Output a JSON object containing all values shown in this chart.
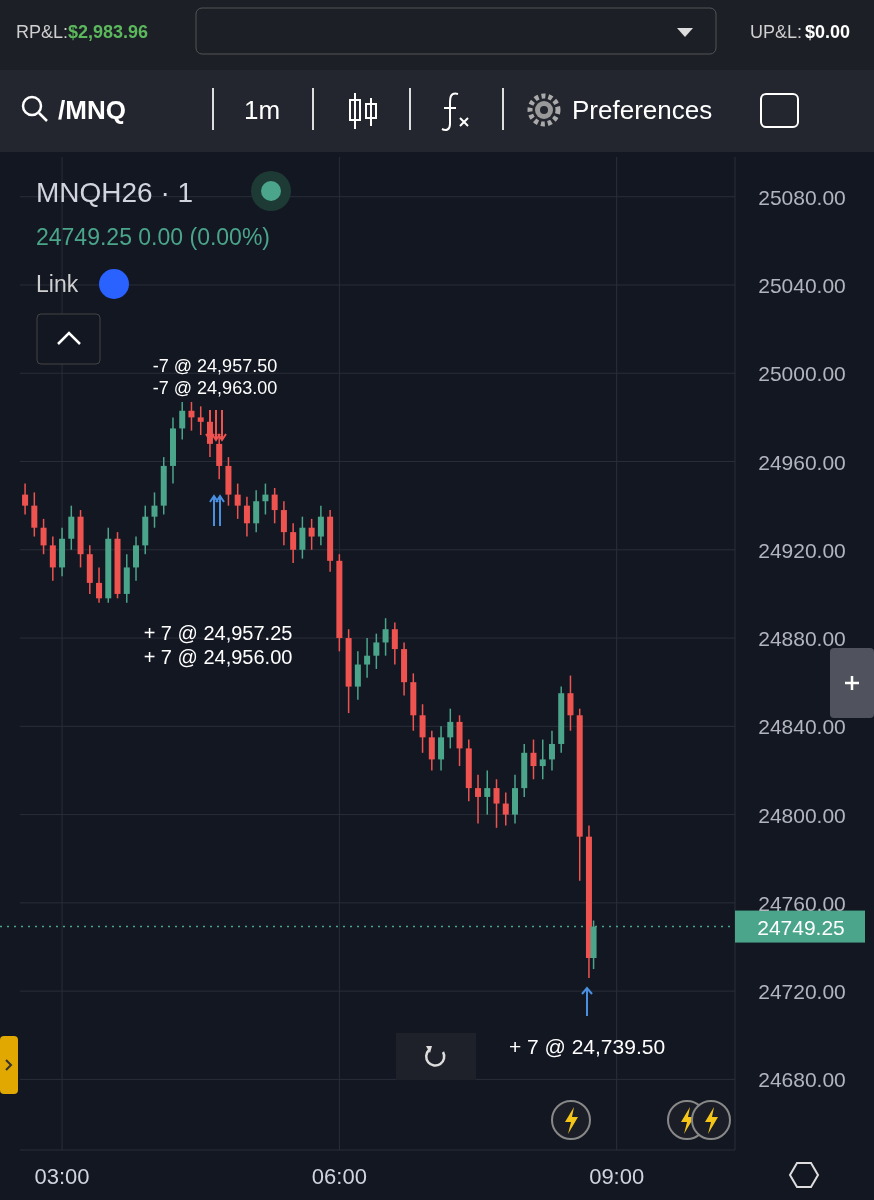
{
  "chart_data": {
    "type": "candlestick",
    "title": "MNQH26 · 1",
    "subtitle": "24749.25 0.00 (0.00%)",
    "x": [
      2.6,
      2.7,
      2.8,
      2.9,
      3.0,
      3.1,
      3.2,
      3.3,
      3.4,
      3.5,
      3.6,
      3.7,
      3.8,
      3.9,
      4.0,
      4.1,
      4.2,
      4.3,
      4.4,
      4.5,
      4.6,
      4.7,
      4.8,
      4.9,
      5.0,
      5.1,
      5.2,
      5.3,
      5.4,
      5.5,
      5.6,
      5.7,
      5.8,
      5.9,
      6.0,
      6.1,
      6.2,
      6.3,
      6.4,
      6.5,
      6.6,
      6.7,
      6.8,
      6.9,
      7.0,
      7.1,
      7.2,
      7.3,
      7.4,
      7.5,
      7.6,
      7.7,
      7.8,
      7.9,
      8.0,
      8.1,
      8.2,
      8.3,
      8.4,
      8.5,
      8.6,
      8.7,
      8.75
    ],
    "ohlc": [
      [
        24945,
        24950,
        24936,
        24940
      ],
      [
        24940,
        24946,
        24926,
        24930
      ],
      [
        24930,
        24934,
        24918,
        24922
      ],
      [
        24922,
        24926,
        24906,
        24912
      ],
      [
        24912,
        24930,
        24908,
        24925
      ],
      [
        24925,
        24940,
        24920,
        24935
      ],
      [
        24935,
        24938,
        24912,
        24918
      ],
      [
        24918,
        24922,
        24900,
        24905
      ],
      [
        24905,
        24912,
        24896,
        24898
      ],
      [
        24898,
        24930,
        24896,
        24925
      ],
      [
        24925,
        24928,
        24898,
        24900
      ],
      [
        24900,
        24918,
        24896,
        24912
      ],
      [
        24912,
        24926,
        24906,
        24922
      ],
      [
        24922,
        24940,
        24918,
        24935
      ],
      [
        24935,
        24946,
        24930,
        24940
      ],
      [
        24940,
        24962,
        24936,
        24958
      ],
      [
        24958,
        24980,
        24950,
        24975
      ],
      [
        24975,
        24987,
        24970,
        24983
      ],
      [
        24983,
        24987,
        24974,
        24980
      ],
      [
        24980,
        24985,
        24972,
        24978
      ],
      [
        24978,
        24981,
        24962,
        24968
      ],
      [
        24968,
        24972,
        24952,
        24958
      ],
      [
        24958,
        24962,
        24940,
        24945
      ],
      [
        24945,
        24950,
        24934,
        24940
      ],
      [
        24940,
        24944,
        24926,
        24932
      ],
      [
        24932,
        24947,
        24928,
        24942
      ],
      [
        24942,
        24950,
        24936,
        24945
      ],
      [
        24945,
        24948,
        24932,
        24938
      ],
      [
        24938,
        24942,
        24922,
        24928
      ],
      [
        24928,
        24932,
        24914,
        24920
      ],
      [
        24920,
        24935,
        24916,
        24930
      ],
      [
        24930,
        24934,
        24920,
        24926
      ],
      [
        24926,
        24940,
        24922,
        24935
      ],
      [
        24935,
        24938,
        24910,
        24915
      ],
      [
        24915,
        24918,
        24874,
        24880
      ],
      [
        24880,
        24884,
        24846,
        24858
      ],
      [
        24858,
        24874,
        24852,
        24868
      ],
      [
        24868,
        24880,
        24862,
        24872
      ],
      [
        24872,
        24882,
        24866,
        24878
      ],
      [
        24878,
        24889,
        24872,
        24884
      ],
      [
        24884,
        24887,
        24868,
        24875
      ],
      [
        24875,
        24878,
        24854,
        24860
      ],
      [
        24860,
        24864,
        24838,
        24845
      ],
      [
        24845,
        24850,
        24828,
        24835
      ],
      [
        24835,
        24838,
        24820,
        24825
      ],
      [
        24825,
        24840,
        24820,
        24835
      ],
      [
        24835,
        24848,
        24830,
        24842
      ],
      [
        24842,
        24845,
        24822,
        24830
      ],
      [
        24830,
        24834,
        24806,
        24812
      ],
      [
        24812,
        24818,
        24796,
        24808
      ],
      [
        24808,
        24820,
        24800,
        24812
      ],
      [
        24812,
        24816,
        24794,
        24805
      ],
      [
        24805,
        24810,
        24795,
        24800
      ],
      [
        24800,
        24818,
        24796,
        24812
      ],
      [
        24812,
        24832,
        24808,
        24828
      ],
      [
        24828,
        24834,
        24816,
        24822
      ],
      [
        24822,
        24834,
        24816,
        24825
      ],
      [
        24825,
        24838,
        24820,
        24832
      ],
      [
        24832,
        24858,
        24828,
        24855
      ],
      [
        24855,
        24863,
        24838,
        24845
      ],
      [
        24845,
        24848,
        24770,
        24790
      ],
      [
        24790,
        24795,
        24726,
        24735
      ],
      [
        24735,
        24752,
        24730,
        24749.25
      ]
    ],
    "xlim": [
      2.545,
      10.28
    ],
    "ylim": [
      24648,
      25098
    ],
    "xticks": [
      {
        "value": 3,
        "label": "03:00"
      },
      {
        "value": 6,
        "label": "06:00"
      },
      {
        "value": 9,
        "label": "09:00"
      }
    ],
    "yticks": [
      {
        "value": 24680,
        "label": "24680.00"
      },
      {
        "value": 24720,
        "label": "24720.00"
      },
      {
        "value": 24760,
        "label": "24760.00"
      },
      {
        "value": 24800,
        "label": "24800.00"
      },
      {
        "value": 24840,
        "label": "24840.00"
      },
      {
        "value": 24880,
        "label": "24880.00"
      },
      {
        "value": 24920,
        "label": "24920.00"
      },
      {
        "value": 24960,
        "label": "24960.00"
      },
      {
        "value": 25000,
        "label": "25000.00"
      },
      {
        "value": 25040,
        "label": "25040.00"
      },
      {
        "value": 25080,
        "label": "25080.00"
      }
    ],
    "grid": true,
    "ref_lines": [
      {
        "axis": "y",
        "value": 24749.25,
        "label": "24749.25",
        "color": "#4aa58a",
        "line_style": "dotted"
      }
    ],
    "annotations": [
      "RP&L:",
      "$2,983.96",
      "UP&L:",
      "$0.00",
      "/MNQ",
      "1m",
      "Preferences",
      "Link",
      "-7 @ 24,957.50",
      "-7 @ 24,963.00",
      "+ 7 @ 24,957.25",
      "+ 7 @ 24,956.00",
      "+ 7 @ 24,739.50"
    ]
  }
}
